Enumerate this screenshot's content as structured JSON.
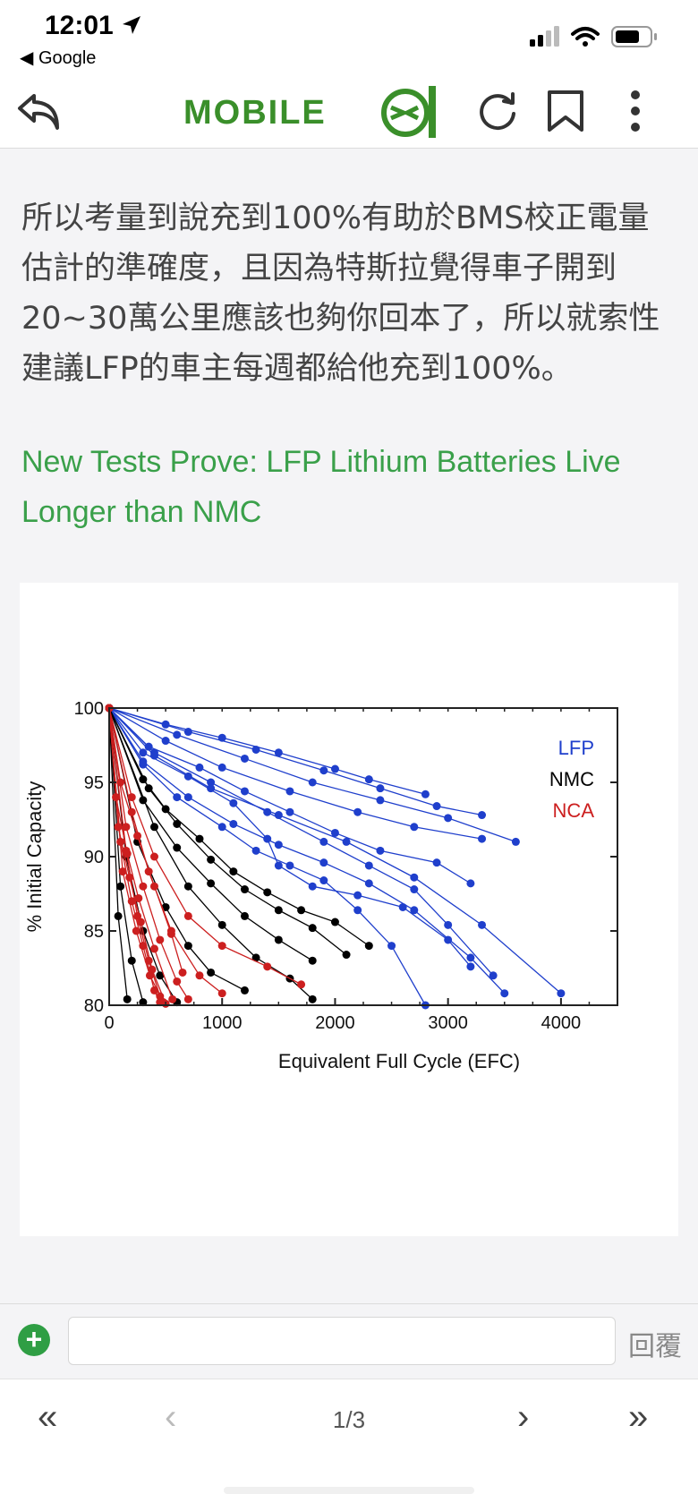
{
  "status": {
    "time": "12:01",
    "back_app": "◀ Google"
  },
  "nav": {
    "logo_text": "MOBILE",
    "logo_badge": "01"
  },
  "post": {
    "body": "所以考量到說充到100%有助於BMS校正電量估計的準確度，且因為特斯拉覺得車子開到20~30萬公里應該也夠你回本了，所以就索性建議LFP的車主每週都給他充到100%。",
    "link": "New Tests Prove: LFP Lithium Batteries Live Longer than NMC"
  },
  "colors": {
    "LFP": "#1f3fcc",
    "NMC": "#000000",
    "NCA": "#cc1f1f",
    "link": "#3aa04a"
  },
  "chart_data": {
    "type": "line",
    "xlabel": "Equivalent Full Cycle (EFC)",
    "ylabel": "% Initial Capacity",
    "xlim": [
      0,
      4500
    ],
    "ylim": [
      80,
      100
    ],
    "xticks": [
      0,
      1000,
      2000,
      3000,
      4000
    ],
    "yticks": [
      80,
      85,
      90,
      95,
      100
    ],
    "legend_position": "top-right",
    "series": [
      {
        "name": "LFP",
        "color": "#1f3fcc",
        "lines": [
          [
            [
              0,
              100
            ],
            [
              500,
              98.9
            ],
            [
              1000,
              98
            ],
            [
              1500,
              97
            ],
            [
              2000,
              95.9
            ],
            [
              2300,
              95.2
            ],
            [
              2800,
              94.2
            ]
          ],
          [
            [
              0,
              100
            ],
            [
              700,
              98.4
            ],
            [
              1300,
              97.2
            ],
            [
              1900,
              95.8
            ],
            [
              2400,
              94.6
            ],
            [
              2900,
              93.4
            ],
            [
              3300,
              92.8
            ]
          ],
          [
            [
              0,
              100
            ],
            [
              600,
              98.2
            ],
            [
              1200,
              96.6
            ],
            [
              1800,
              95
            ],
            [
              2400,
              93.8
            ],
            [
              3000,
              92.6
            ],
            [
              3600,
              91
            ]
          ],
          [
            [
              0,
              100
            ],
            [
              500,
              97.8
            ],
            [
              1000,
              96
            ],
            [
              1600,
              94.4
            ],
            [
              2200,
              93
            ],
            [
              2700,
              92
            ],
            [
              3300,
              91.2
            ]
          ],
          [
            [
              0,
              100
            ],
            [
              400,
              97
            ],
            [
              900,
              95
            ],
            [
              1400,
              93
            ],
            [
              1900,
              91
            ],
            [
              2300,
              89.4
            ],
            [
              2700,
              87.8
            ],
            [
              3000,
              85.4
            ],
            [
              3400,
              82
            ]
          ],
          [
            [
              0,
              100
            ],
            [
              300,
              96.4
            ],
            [
              700,
              94
            ],
            [
              1100,
              92.2
            ],
            [
              1500,
              90.8
            ],
            [
              1900,
              89.6
            ],
            [
              2300,
              88.2
            ],
            [
              2700,
              86.4
            ],
            [
              3200,
              83.2
            ],
            [
              3500,
              80.8
            ]
          ],
          [
            [
              0,
              100
            ],
            [
              300,
              96.2
            ],
            [
              600,
              94
            ],
            [
              1000,
              92
            ],
            [
              1300,
              90.4
            ],
            [
              1600,
              89.4
            ],
            [
              1900,
              88.4
            ],
            [
              2200,
              86.4
            ],
            [
              2500,
              84
            ],
            [
              2800,
              80
            ]
          ],
          [
            [
              0,
              100
            ],
            [
              400,
              96.8
            ],
            [
              900,
              94.6
            ],
            [
              1500,
              92.8
            ],
            [
              2100,
              91
            ],
            [
              2700,
              88.6
            ],
            [
              3300,
              85.4
            ],
            [
              4000,
              80.8
            ]
          ],
          [
            [
              0,
              100
            ],
            [
              300,
              97
            ],
            [
              700,
              95.4
            ],
            [
              1100,
              93.6
            ],
            [
              1400,
              91.2
            ],
            [
              1500,
              89.4
            ],
            [
              1800,
              88
            ],
            [
              2200,
              87.4
            ],
            [
              2600,
              86.6
            ],
            [
              3000,
              84.4
            ],
            [
              3200,
              82.6
            ]
          ],
          [
            [
              0,
              100
            ],
            [
              350,
              97.4
            ],
            [
              800,
              96
            ],
            [
              1200,
              94.4
            ],
            [
              1600,
              93
            ],
            [
              2000,
              91.6
            ],
            [
              2400,
              90.4
            ],
            [
              2900,
              89.6
            ],
            [
              3200,
              88.2
            ]
          ]
        ]
      },
      {
        "name": "NMC",
        "color": "#000000",
        "lines": [
          [
            [
              0,
              100
            ],
            [
              300,
              95.2
            ],
            [
              500,
              93.2
            ],
            [
              800,
              91.2
            ],
            [
              1100,
              89
            ],
            [
              1400,
              87.6
            ],
            [
              1700,
              86.4
            ],
            [
              2000,
              85.6
            ],
            [
              2300,
              84
            ]
          ],
          [
            [
              0,
              100
            ],
            [
              350,
              94.6
            ],
            [
              600,
              92.2
            ],
            [
              900,
              89.8
            ],
            [
              1200,
              87.8
            ],
            [
              1500,
              86.4
            ],
            [
              1800,
              85.2
            ],
            [
              2100,
              83.4
            ]
          ],
          [
            [
              0,
              100
            ],
            [
              300,
              93.8
            ],
            [
              600,
              90.6
            ],
            [
              900,
              88.2
            ],
            [
              1200,
              86
            ],
            [
              1500,
              84.4
            ],
            [
              1800,
              83
            ]
          ],
          [
            [
              0,
              100
            ],
            [
              400,
              92
            ],
            [
              700,
              88
            ],
            [
              1000,
              85.4
            ],
            [
              1300,
              83.2
            ],
            [
              1600,
              81.8
            ],
            [
              1800,
              80.4
            ]
          ],
          [
            [
              0,
              100
            ],
            [
              250,
              91
            ],
            [
              500,
              86.6
            ],
            [
              700,
              84
            ],
            [
              900,
              82.2
            ],
            [
              1200,
              81
            ]
          ],
          [
            [
              0,
              100
            ],
            [
              150,
              90
            ],
            [
              300,
              85
            ],
            [
              450,
              82
            ],
            [
              600,
              80.2
            ]
          ],
          [
            [
              0,
              100
            ],
            [
              100,
              88
            ],
            [
              200,
              83
            ],
            [
              300,
              80.2
            ]
          ],
          [
            [
              0,
              100
            ],
            [
              80,
              86
            ],
            [
              160,
              80.4
            ]
          ]
        ]
      },
      {
        "name": "NCA",
        "color": "#cc1f1f",
        "lines": [
          [
            [
              0,
              100
            ],
            [
              200,
              94
            ],
            [
              400,
              90
            ],
            [
              700,
              86
            ],
            [
              1000,
              84
            ],
            [
              1400,
              82.6
            ],
            [
              1700,
              81.4
            ]
          ],
          [
            [
              0,
              100
            ],
            [
              200,
              93
            ],
            [
              350,
              89
            ],
            [
              550,
              85
            ],
            [
              800,
              82
            ],
            [
              1000,
              80.8
            ]
          ],
          [
            [
              0,
              100
            ],
            [
              150,
              92
            ],
            [
              300,
              88
            ],
            [
              450,
              84.4
            ],
            [
              600,
              81.6
            ],
            [
              700,
              80.4
            ]
          ],
          [
            [
              0,
              100
            ],
            [
              150,
              90.4
            ],
            [
              250,
              86
            ],
            [
              350,
              83
            ],
            [
              450,
              80.6
            ]
          ],
          [
            [
              0,
              100
            ],
            [
              100,
              91
            ],
            [
              200,
              87
            ],
            [
              300,
              84
            ],
            [
              400,
              81
            ],
            [
              450,
              80.2
            ]
          ],
          [
            [
              0,
              100
            ],
            [
              120,
              89
            ],
            [
              240,
              85
            ],
            [
              360,
              82
            ],
            [
              480,
              80.2
            ]
          ],
          [
            [
              0,
              100
            ],
            [
              80,
              92
            ],
            [
              180,
              88.6
            ],
            [
              280,
              85.6
            ],
            [
              380,
              82.4
            ],
            [
              500,
              80.1
            ]
          ],
          [
            [
              0,
              100
            ],
            [
              60,
              94
            ],
            [
              160,
              90.2
            ],
            [
              260,
              87.2
            ],
            [
              400,
              83.8
            ],
            [
              560,
              80.4
            ]
          ],
          [
            [
              0,
              100
            ],
            [
              100,
              95
            ],
            [
              250,
              91.4
            ],
            [
              400,
              88
            ],
            [
              550,
              84.8
            ],
            [
              650,
              82.2
            ]
          ]
        ]
      }
    ]
  },
  "reply": {
    "placeholder": "",
    "button": "回覆"
  },
  "pager": {
    "first": "«",
    "prev": "‹",
    "indicator": "1/3",
    "next": "›",
    "last": "»"
  }
}
